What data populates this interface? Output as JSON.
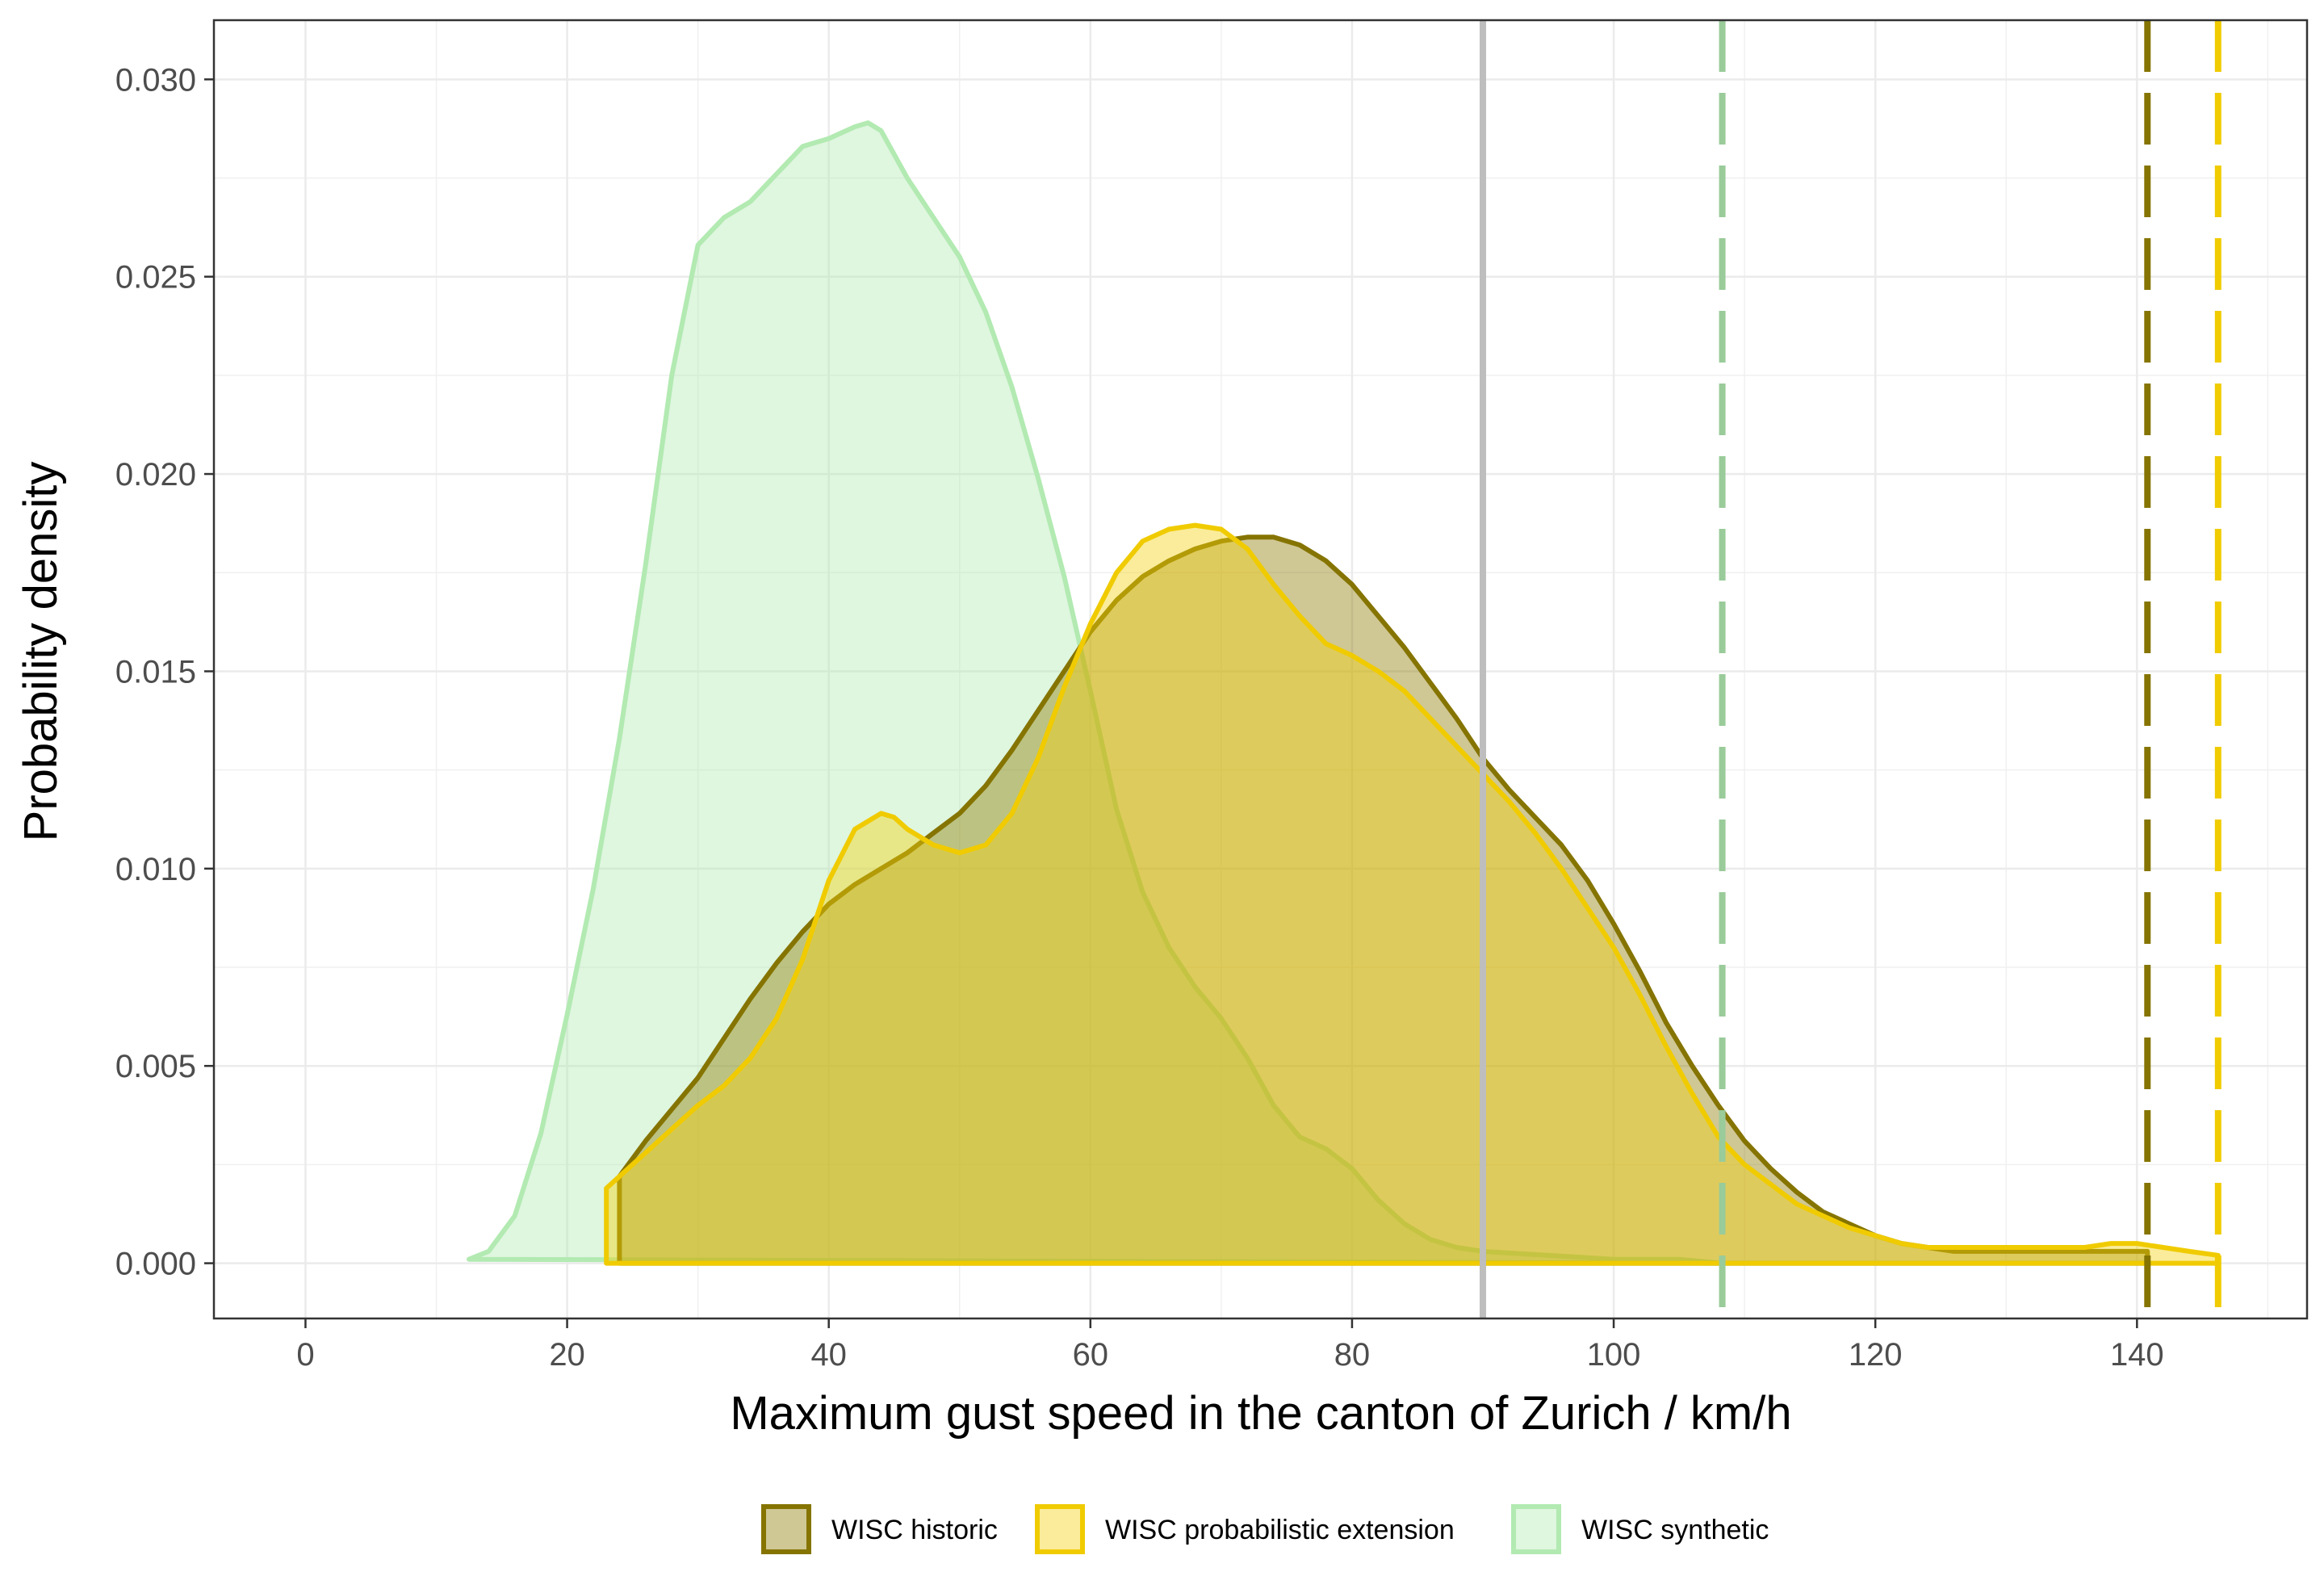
{
  "chart_data": {
    "type": "area",
    "title": "",
    "xlabel": "Maximum gust speed in the canton of Zurich / km/h",
    "ylabel": "Probability density",
    "xlim": [
      -7,
      153
    ],
    "ylim": [
      -0.0014,
      0.0315
    ],
    "x_ticks": [
      0,
      20,
      40,
      60,
      80,
      100,
      120,
      140
    ],
    "y_ticks": [
      0.0,
      0.005,
      0.01,
      0.015,
      0.02,
      0.025,
      0.03
    ],
    "x_tick_labels": [
      "0",
      "20",
      "40",
      "60",
      "80",
      "100",
      "120",
      "140"
    ],
    "y_tick_labels": [
      "0.000",
      "0.005",
      "0.010",
      "0.015",
      "0.020",
      "0.025",
      "0.030"
    ],
    "grid": true,
    "legend_position": "bottom",
    "series": [
      {
        "name": "WISC synthetic",
        "fill": "#b2eab2",
        "fill_opacity": 0.42,
        "stroke": "#b2eab2",
        "x": [
          12.5,
          14,
          16,
          18,
          20,
          22,
          24,
          26,
          28,
          30,
          32,
          34,
          36,
          38,
          40,
          42,
          43,
          44,
          46,
          48,
          50,
          52,
          54,
          56,
          58,
          60,
          62,
          64,
          66,
          68,
          70,
          72,
          74,
          76,
          78,
          80,
          82,
          84,
          86,
          88,
          90,
          95,
          100,
          105,
          108.3
        ],
        "y": [
          0.0001,
          0.0003,
          0.0012,
          0.0033,
          0.0063,
          0.0095,
          0.0133,
          0.0177,
          0.0225,
          0.0258,
          0.0265,
          0.0269,
          0.0276,
          0.0283,
          0.0285,
          0.0288,
          0.0289,
          0.0287,
          0.0275,
          0.0265,
          0.0255,
          0.0241,
          0.0222,
          0.0199,
          0.0174,
          0.0145,
          0.0115,
          0.0094,
          0.008,
          0.007,
          0.0062,
          0.0052,
          0.004,
          0.0032,
          0.0029,
          0.0024,
          0.0016,
          0.001,
          0.0006,
          0.0004,
          0.0003,
          0.0002,
          0.0001,
          0.0001,
          0.0
        ]
      },
      {
        "name": "WISC historic",
        "fill": "#8c7a00",
        "fill_opacity": 0.42,
        "stroke": "#857400",
        "x": [
          24,
          24,
          26,
          28,
          30,
          32,
          34,
          36,
          38,
          40,
          42,
          44,
          46,
          48,
          50,
          52,
          54,
          56,
          58,
          60,
          62,
          64,
          66,
          68,
          70,
          72,
          74,
          76,
          78,
          80,
          82,
          84,
          86,
          88,
          90,
          92,
          94,
          96,
          98,
          100,
          102,
          104,
          106,
          108,
          110,
          112,
          114,
          116,
          118,
          120,
          122,
          124,
          126,
          128,
          130,
          135,
          140,
          140.8,
          140.8
        ],
        "y": [
          0.0,
          0.0022,
          0.0031,
          0.0039,
          0.0047,
          0.0057,
          0.0067,
          0.0076,
          0.0084,
          0.0091,
          0.0096,
          0.01,
          0.0104,
          0.0109,
          0.0114,
          0.0121,
          0.013,
          0.014,
          0.015,
          0.016,
          0.0168,
          0.0174,
          0.0178,
          0.0181,
          0.0183,
          0.0184,
          0.0184,
          0.0182,
          0.0178,
          0.0172,
          0.0164,
          0.0156,
          0.0147,
          0.0138,
          0.0128,
          0.012,
          0.0113,
          0.0106,
          0.0097,
          0.0086,
          0.0074,
          0.0061,
          0.005,
          0.004,
          0.0031,
          0.0024,
          0.0018,
          0.0013,
          0.001,
          0.0007,
          0.0005,
          0.0004,
          0.0003,
          0.0003,
          0.0003,
          0.0003,
          0.0003,
          0.0003,
          0.0
        ]
      },
      {
        "name": "WISC probabilistic extension",
        "fill": "#f4d110",
        "fill_opacity": 0.42,
        "stroke": "#f0cb00",
        "x": [
          23,
          23,
          24,
          26,
          28,
          30,
          32,
          34,
          36,
          38,
          40,
          42,
          44,
          45,
          46,
          48,
          50,
          52,
          54,
          56,
          58,
          60,
          62,
          64,
          66,
          68,
          70,
          72,
          74,
          76,
          78,
          80,
          82,
          84,
          86,
          88,
          90,
          92,
          94,
          96,
          98,
          100,
          102,
          104,
          106,
          108,
          110,
          112,
          114,
          116,
          118,
          120,
          122,
          124,
          126,
          128,
          130,
          133,
          136,
          138,
          140,
          142,
          144,
          146.2,
          146.2
        ],
        "y": [
          0.0,
          0.0019,
          0.0022,
          0.0028,
          0.0034,
          0.004,
          0.0045,
          0.0052,
          0.0062,
          0.0077,
          0.0097,
          0.011,
          0.0114,
          0.0113,
          0.011,
          0.0106,
          0.0104,
          0.0106,
          0.0114,
          0.0128,
          0.0146,
          0.0162,
          0.0175,
          0.0183,
          0.0186,
          0.0187,
          0.0186,
          0.0181,
          0.0172,
          0.0164,
          0.0157,
          0.0154,
          0.015,
          0.0145,
          0.0138,
          0.0131,
          0.0124,
          0.0117,
          0.0109,
          0.01,
          0.009,
          0.008,
          0.0068,
          0.0055,
          0.0043,
          0.0032,
          0.0025,
          0.002,
          0.0015,
          0.0012,
          0.0009,
          0.0007,
          0.0005,
          0.0004,
          0.0004,
          0.0004,
          0.0004,
          0.0004,
          0.0004,
          0.0005,
          0.0005,
          0.0004,
          0.0003,
          0.0002,
          0.0
        ]
      }
    ],
    "reference_lines": [
      {
        "x": 90,
        "style": "solid",
        "color": "#bebebe"
      },
      {
        "x": 108.3,
        "style": "dashed",
        "color": "#9acb9a"
      },
      {
        "x": 140.8,
        "style": "dashed",
        "color": "#857400"
      },
      {
        "x": 146.2,
        "style": "dashed",
        "color": "#f0cb00"
      }
    ]
  }
}
